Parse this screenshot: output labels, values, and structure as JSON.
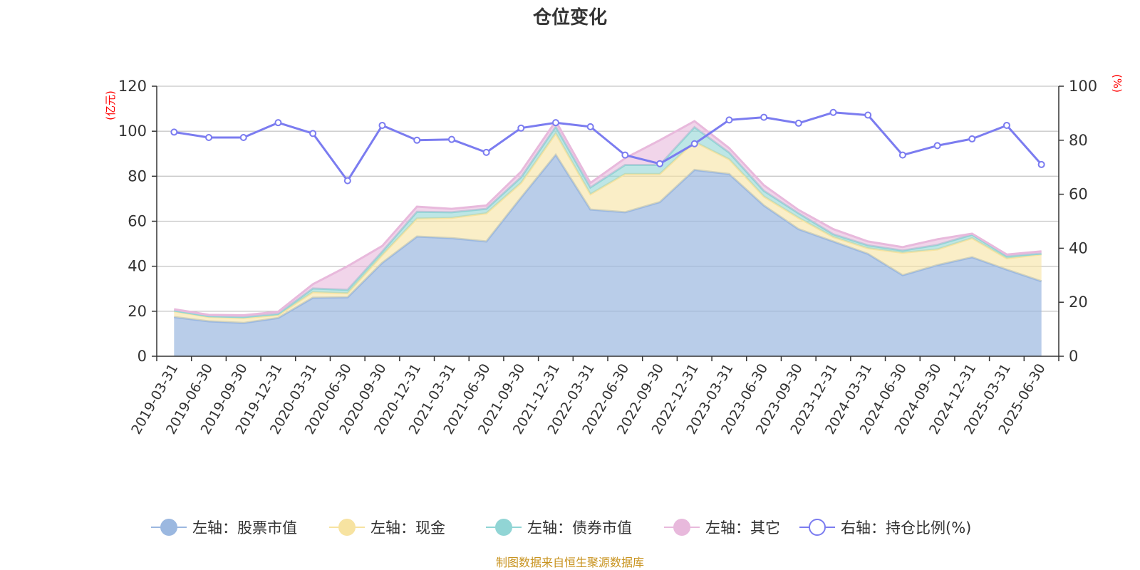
{
  "chart_data": {
    "type": "area",
    "title": "仓位变化",
    "left_axis_unit": "(亿元)",
    "right_axis_unit": "(%)",
    "ylim_left": [
      0,
      120
    ],
    "yticks_left": [
      0,
      20,
      40,
      60,
      80,
      100,
      120
    ],
    "ylim_right": [
      0,
      100
    ],
    "yticks_right": [
      0,
      20,
      40,
      60,
      80,
      100
    ],
    "grid": true,
    "legend_position": "bottom",
    "categories": [
      "2019-03-31",
      "2019-06-30",
      "2019-09-30",
      "2019-12-31",
      "2020-03-31",
      "2020-06-30",
      "2020-09-30",
      "2020-12-31",
      "2021-03-31",
      "2021-06-30",
      "2021-09-30",
      "2021-12-31",
      "2022-03-31",
      "2022-06-30",
      "2022-09-30",
      "2022-12-31",
      "2023-03-31",
      "2023-06-30",
      "2023-09-30",
      "2023-12-31",
      "2024-03-31",
      "2024-06-30",
      "2024-09-30",
      "2024-12-31",
      "2025-03-31",
      "2025-06-30"
    ],
    "series": [
      {
        "name": "左轴：股票市值",
        "axis": "left",
        "type": "stacked-area",
        "color": "#9bb8e0",
        "values": [
          17.4,
          15.5,
          14.8,
          17.0,
          26.0,
          26.2,
          41.5,
          53.2,
          52.5,
          51.0,
          70.5,
          89.5,
          65.2,
          64.0,
          68.5,
          82.8,
          81.0,
          67.0,
          56.5,
          51.0,
          45.5,
          36.0,
          40.5,
          44.0,
          38.5,
          33.3
        ]
      },
      {
        "name": "左轴：现金",
        "axis": "left",
        "type": "stacked-area",
        "color": "#f7e3a1",
        "values": [
          2.6,
          2.0,
          2.2,
          1.3,
          2.5,
          1.8,
          3.5,
          8.0,
          9.0,
          12.5,
          6.5,
          9.5,
          6.8,
          17.0,
          12.5,
          12.5,
          6.5,
          4.0,
          5.0,
          2.0,
          2.5,
          10.0,
          7.0,
          8.5,
          5.0,
          12.0
        ]
      },
      {
        "name": "左轴：债券市值",
        "axis": "left",
        "type": "stacked-area",
        "color": "#91d5d5",
        "values": [
          0.3,
          0.3,
          0.4,
          0.5,
          1.6,
          1.5,
          1.5,
          3.0,
          2.5,
          2.0,
          2.5,
          3.0,
          3.0,
          4.0,
          4.0,
          6.5,
          3.0,
          2.5,
          2.0,
          1.2,
          1.3,
          1.0,
          2.0,
          1.5,
          1.0,
          0.3
        ]
      },
      {
        "name": "左轴：其它",
        "axis": "left",
        "type": "stacked-area",
        "color": "#e8b9dc",
        "values": [
          0.6,
          0.6,
          0.8,
          1.0,
          1.9,
          10.5,
          2.5,
          2.3,
          1.5,
          1.5,
          2.5,
          2.5,
          2.0,
          3.0,
          11.0,
          2.7,
          2.0,
          2.5,
          1.5,
          2.3,
          1.7,
          1.5,
          2.5,
          0.5,
          0.7,
          1.0
        ]
      },
      {
        "name": "右轴：持仓比例(%)",
        "axis": "right",
        "type": "line",
        "color": "#7b7cf0",
        "values": [
          83.0,
          81.0,
          81.0,
          86.5,
          82.5,
          65.0,
          85.5,
          80.0,
          80.3,
          75.5,
          84.5,
          86.5,
          85.0,
          74.5,
          71.3,
          78.7,
          87.5,
          88.5,
          86.3,
          90.3,
          89.3,
          74.5,
          78.0,
          80.5,
          85.5,
          71.0
        ]
      }
    ],
    "source_note": "制图数据来自恒生聚源数据库"
  }
}
